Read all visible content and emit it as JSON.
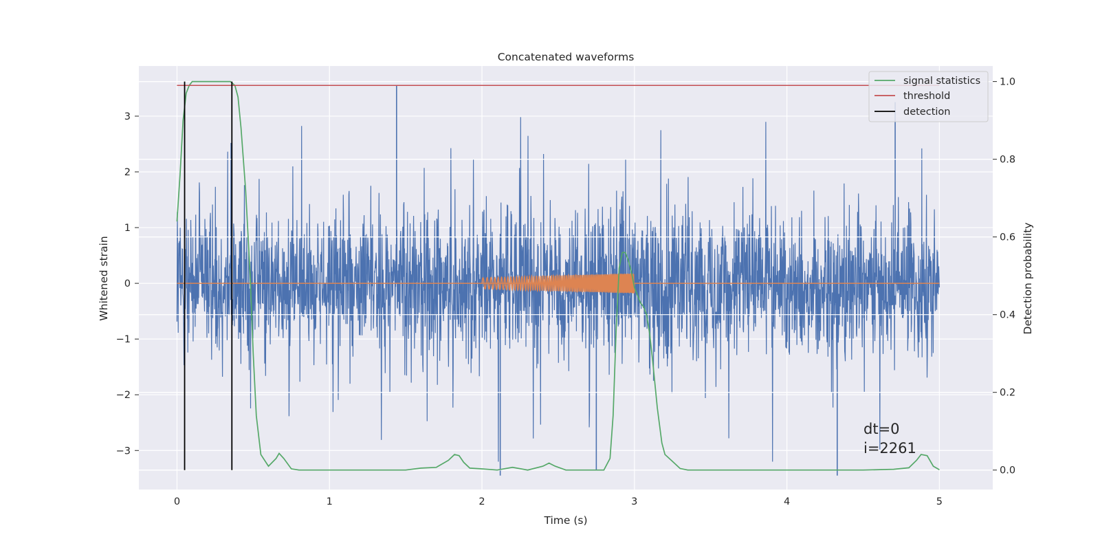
{
  "chart_data": {
    "type": "line",
    "title": "Concatenated waveforms",
    "xlabel": "Time (s)",
    "ylabel": "Whitened strain",
    "y2label": "Detection probability",
    "xlim": [
      -0.25,
      5.35
    ],
    "ylim": [
      -3.7,
      3.9
    ],
    "y2lim": [
      -0.05,
      1.04
    ],
    "xticks": [
      0,
      1,
      2,
      3,
      4,
      5
    ],
    "xtick_labels": [
      "0",
      "1",
      "2",
      "3",
      "4",
      "5"
    ],
    "yticks": [
      -3,
      -2,
      -1,
      0,
      1,
      2,
      3
    ],
    "ytick_labels": [
      "−3",
      "−2",
      "−1",
      "0",
      "1",
      "2",
      "3"
    ],
    "y2ticks": [
      0.0,
      0.2,
      0.4,
      0.6,
      0.8,
      1.0
    ],
    "y2tick_labels": [
      "0.0",
      "0.2",
      "0.4",
      "0.6",
      "0.8",
      "1.0"
    ],
    "grid": true,
    "legend_position": "top-right",
    "series": [
      {
        "name": "",
        "kind": "noisy_strain",
        "color": "#4c72b0",
        "x_range": [
          0,
          5
        ],
        "amplitude_band": [
          -0.65,
          0.75
        ],
        "spikes": [
          {
            "x": 1.44,
            "y": 3.55
          },
          {
            "x": 4.71,
            "y": 3.25
          },
          {
            "x": 2.12,
            "y": -3.45
          },
          {
            "x": 4.33,
            "y": -3.45
          },
          {
            "x": 2.75,
            "y": -3.35
          }
        ]
      },
      {
        "name": "",
        "kind": "injected_waveform",
        "color": "#dd8452",
        "x_range": [
          2.0,
          3.0
        ],
        "amplitude_start": 0.1,
        "amplitude_end": 0.18
      },
      {
        "name": "signal statistics",
        "axis": "right",
        "color": "#55a868",
        "x": [
          0,
          0.02,
          0.04,
          0.06,
          0.08,
          0.1,
          0.2,
          0.3,
          0.35,
          0.38,
          0.4,
          0.42,
          0.45,
          0.48,
          0.5,
          0.52,
          0.55,
          0.6,
          0.65,
          0.67,
          0.7,
          0.75,
          0.8,
          1.0,
          1.5,
          1.6,
          1.7,
          1.78,
          1.82,
          1.85,
          1.88,
          1.92,
          2.0,
          2.1,
          2.2,
          2.3,
          2.4,
          2.44,
          2.48,
          2.55,
          2.7,
          2.8,
          2.84,
          2.86,
          2.88,
          2.9,
          2.92,
          2.94,
          2.96,
          2.98,
          3.0,
          3.02,
          3.04,
          3.06,
          3.08,
          3.1,
          3.12,
          3.15,
          3.18,
          3.2,
          3.25,
          3.3,
          3.35,
          3.4,
          3.5,
          4.0,
          4.5,
          4.7,
          4.8,
          4.85,
          4.88,
          4.92,
          4.96,
          5.0
        ],
        "y": [
          0.64,
          0.76,
          0.9,
          0.97,
          0.99,
          1.0,
          1.0,
          1.0,
          1.0,
          0.99,
          0.96,
          0.88,
          0.72,
          0.5,
          0.3,
          0.14,
          0.04,
          0.01,
          0.03,
          0.043,
          0.03,
          0.003,
          0.0,
          0.0,
          0.0,
          0.005,
          0.007,
          0.025,
          0.04,
          0.037,
          0.02,
          0.005,
          0.003,
          0.0,
          0.007,
          0.0,
          0.01,
          0.018,
          0.01,
          0.0,
          0.0,
          0.0,
          0.03,
          0.14,
          0.36,
          0.52,
          0.56,
          0.56,
          0.54,
          0.51,
          0.47,
          0.45,
          0.43,
          0.42,
          0.4,
          0.35,
          0.28,
          0.16,
          0.07,
          0.04,
          0.022,
          0.004,
          0.0,
          0.0,
          0.0,
          0.0,
          0.0,
          0.002,
          0.006,
          0.025,
          0.04,
          0.037,
          0.01,
          0.001
        ]
      },
      {
        "name": "threshold",
        "axis": "right",
        "color": "#c44e52",
        "x": [
          0,
          5
        ],
        "y": [
          0.99,
          0.99
        ]
      },
      {
        "name": "detection",
        "axis": "right",
        "kind": "vertical_lines",
        "color": "#000000",
        "x": [
          0.05,
          0.36
        ],
        "y_range": [
          0.0,
          1.0
        ]
      }
    ],
    "annotations": [
      "dt=0",
      "i=2261"
    ]
  }
}
